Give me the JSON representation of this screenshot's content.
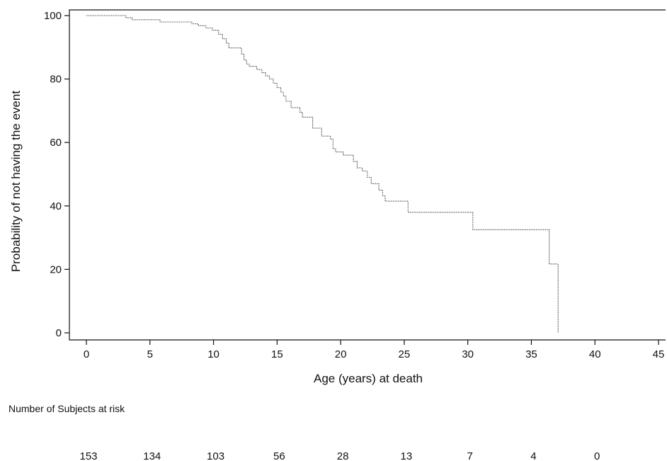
{
  "chart_data": {
    "type": "line",
    "title": "",
    "xlabel": "Age (years) at death",
    "ylabel": "Probability of not having the event",
    "xlim": [
      0,
      45
    ],
    "ylim": [
      0,
      100
    ],
    "xticks": [
      0,
      5,
      10,
      15,
      20,
      25,
      30,
      35,
      40,
      45
    ],
    "yticks": [
      0,
      20,
      40,
      60,
      80,
      100
    ],
    "grid": false,
    "step": true,
    "line_style": "dotted",
    "series": [
      {
        "x": [
          0,
          3.1,
          3.6,
          5.8,
          8.3,
          8.8,
          9.4,
          9.9,
          10.4,
          10.7,
          11.0,
          11.2,
          12.2,
          12.4,
          12.6,
          12.8,
          13.4,
          13.8,
          14.1,
          14.4,
          14.7,
          15.0,
          15.3,
          15.5,
          15.7,
          16.1,
          16.8,
          17.0,
          17.8,
          18.5,
          19.2,
          19.4,
          19.6,
          20.2,
          21.0,
          21.3,
          21.7,
          22.1,
          22.4,
          23.0,
          23.3,
          23.5,
          25.3,
          30.4,
          36.4,
          37.1
        ],
        "y": [
          100,
          99.3,
          98.7,
          98.0,
          97.4,
          96.8,
          96.1,
          95.4,
          94.1,
          92.7,
          91.3,
          89.8,
          87.9,
          86.0,
          84.7,
          84.0,
          83.0,
          82.0,
          81.0,
          80.0,
          78.7,
          77.3,
          75.9,
          74.6,
          73.0,
          71.0,
          69.5,
          68.0,
          64.5,
          62.0,
          61.0,
          58.0,
          57.0,
          56.0,
          54.0,
          52.0,
          51.0,
          49.0,
          47.0,
          45.0,
          43.2,
          41.5,
          38.0,
          32.5,
          21.7,
          0
        ]
      }
    ],
    "risk_table": {
      "title": "Number of Subjects at risk",
      "times": [
        0,
        5,
        10,
        15,
        20,
        25,
        30,
        35,
        40
      ],
      "values": [
        153,
        134,
        103,
        56,
        28,
        13,
        7,
        4,
        0
      ]
    }
  }
}
